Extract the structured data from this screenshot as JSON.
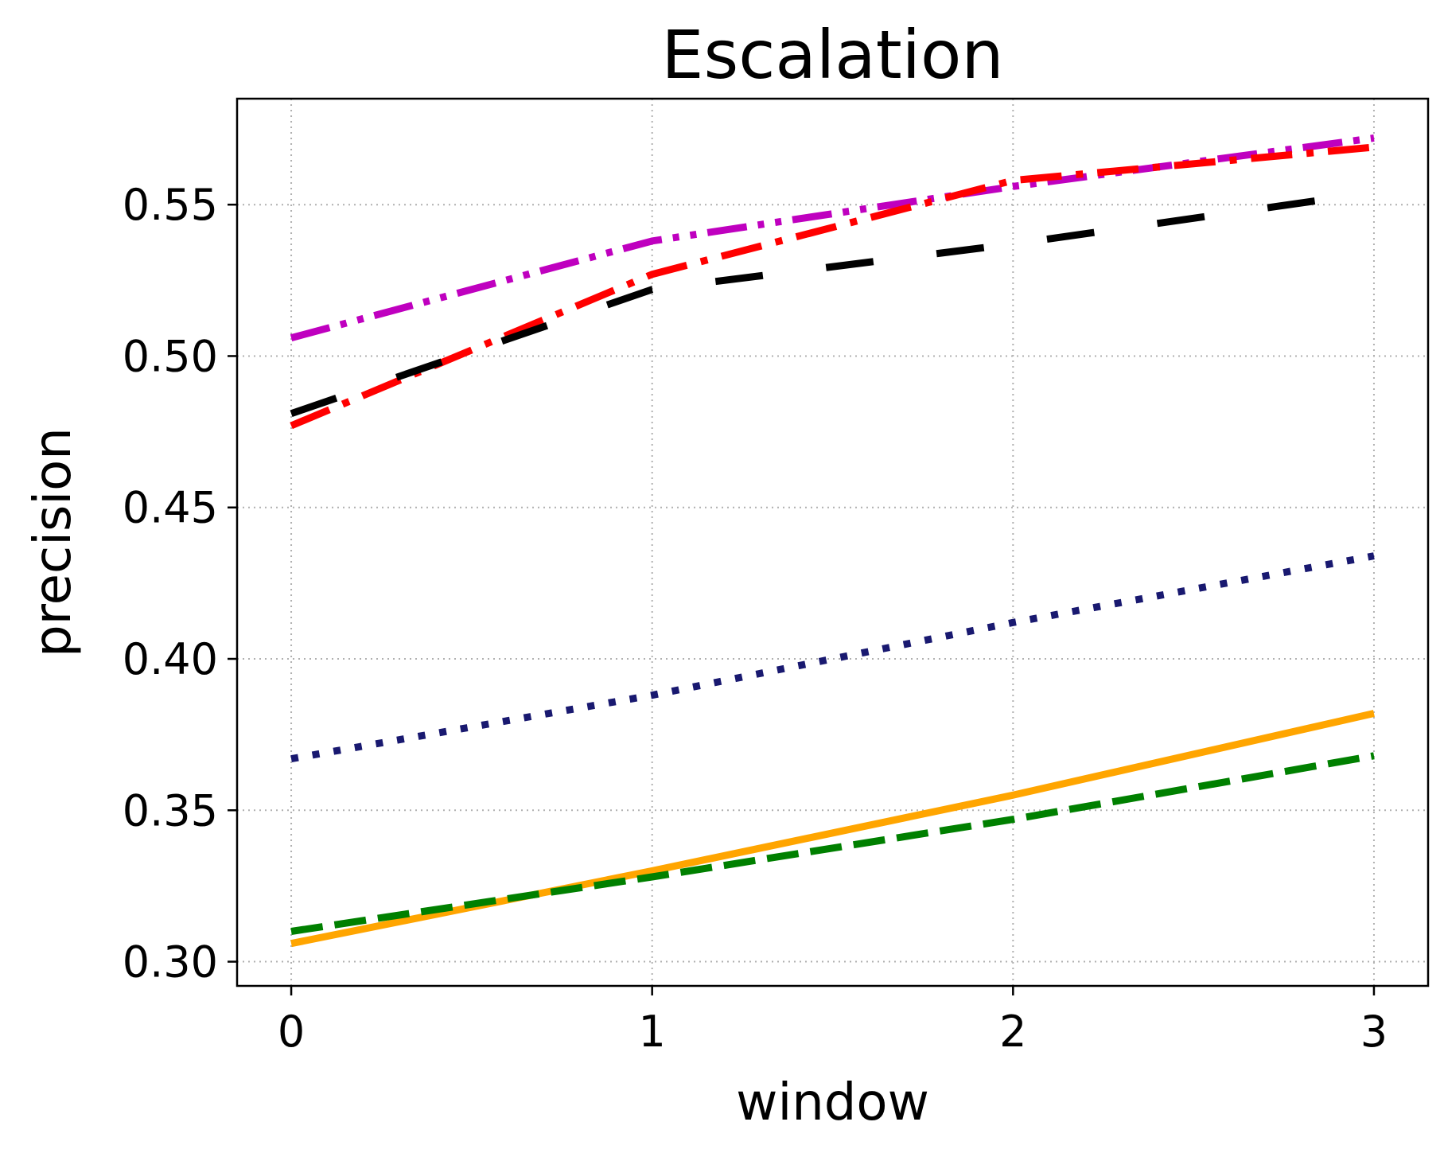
{
  "chart_data": {
    "type": "line",
    "title": "Escalation",
    "xlabel": "window",
    "ylabel": "precision",
    "x": [
      0,
      1,
      2,
      3
    ],
    "xticks": [
      "0",
      "1",
      "2",
      "3"
    ],
    "yticks": [
      "0.30",
      "0.35",
      "0.40",
      "0.45",
      "0.50",
      "0.55"
    ],
    "xlim": [
      -0.15,
      3.15
    ],
    "ylim": [
      0.292,
      0.585
    ],
    "grid": true,
    "series": [
      {
        "values": [
          0.506,
          0.538,
          0.556,
          0.572
        ],
        "color": "#bf00bf",
        "style": "dashdotdot"
      },
      {
        "values": [
          0.477,
          0.527,
          0.558,
          0.569
        ],
        "color": "#ff0000",
        "style": "dashdot"
      },
      {
        "values": [
          0.481,
          0.522,
          0.537,
          0.554
        ],
        "color": "#000000",
        "style": "longdash"
      },
      {
        "values": [
          0.367,
          0.388,
          0.412,
          0.434
        ],
        "color": "#191970",
        "style": "dotted"
      },
      {
        "values": [
          0.306,
          0.33,
          0.355,
          0.382
        ],
        "color": "#ffa500",
        "style": "solid"
      },
      {
        "values": [
          0.31,
          0.328,
          0.347,
          0.368
        ],
        "color": "#008000",
        "style": "dashed"
      }
    ]
  }
}
